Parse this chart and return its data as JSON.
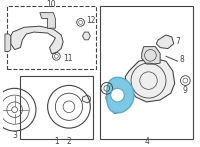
{
  "bg": "#ffffff",
  "lc": "#444444",
  "hc": "#7ec8e3",
  "hc_edge": "#5aaac8",
  "fs": 5.5,
  "fig_w": 2.0,
  "fig_h": 1.47,
  "dpi": 100
}
